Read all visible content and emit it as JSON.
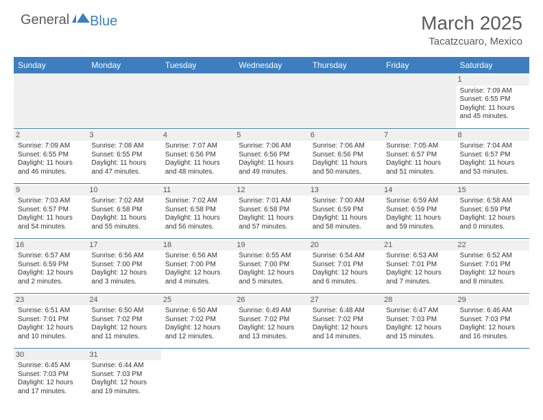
{
  "logo": {
    "text1": "General",
    "text2": "Blue",
    "color1": "#5a5a5a",
    "color2": "#3d7ebf",
    "shape_color": "#3d7ebf"
  },
  "header": {
    "month": "March 2025",
    "location": "Tacatzcuaro, Mexico"
  },
  "style": {
    "header_bg": "#3d7ebf",
    "header_text": "#ffffff",
    "daynum_bg": "#f0f0f0",
    "border_color": "#3d7ebf",
    "body_text": "#333333",
    "font_family": "Arial",
    "daynum_fontsize": 11,
    "cell_fontsize": 10
  },
  "columns": [
    "Sunday",
    "Monday",
    "Tuesday",
    "Wednesday",
    "Thursday",
    "Friday",
    "Saturday"
  ],
  "weeks": [
    [
      null,
      null,
      null,
      null,
      null,
      null,
      {
        "n": "1",
        "sunrise": "7:09 AM",
        "sunset": "6:55 PM",
        "dl": "11 hours and 45 minutes."
      }
    ],
    [
      {
        "n": "2",
        "sunrise": "7:09 AM",
        "sunset": "6:55 PM",
        "dl": "11 hours and 46 minutes."
      },
      {
        "n": "3",
        "sunrise": "7:08 AM",
        "sunset": "6:55 PM",
        "dl": "11 hours and 47 minutes."
      },
      {
        "n": "4",
        "sunrise": "7:07 AM",
        "sunset": "6:56 PM",
        "dl": "11 hours and 48 minutes."
      },
      {
        "n": "5",
        "sunrise": "7:06 AM",
        "sunset": "6:56 PM",
        "dl": "11 hours and 49 minutes."
      },
      {
        "n": "6",
        "sunrise": "7:06 AM",
        "sunset": "6:56 PM",
        "dl": "11 hours and 50 minutes."
      },
      {
        "n": "7",
        "sunrise": "7:05 AM",
        "sunset": "6:57 PM",
        "dl": "11 hours and 51 minutes."
      },
      {
        "n": "8",
        "sunrise": "7:04 AM",
        "sunset": "6:57 PM",
        "dl": "11 hours and 53 minutes."
      }
    ],
    [
      {
        "n": "9",
        "sunrise": "7:03 AM",
        "sunset": "6:57 PM",
        "dl": "11 hours and 54 minutes."
      },
      {
        "n": "10",
        "sunrise": "7:02 AM",
        "sunset": "6:58 PM",
        "dl": "11 hours and 55 minutes."
      },
      {
        "n": "11",
        "sunrise": "7:02 AM",
        "sunset": "6:58 PM",
        "dl": "11 hours and 56 minutes."
      },
      {
        "n": "12",
        "sunrise": "7:01 AM",
        "sunset": "6:58 PM",
        "dl": "11 hours and 57 minutes."
      },
      {
        "n": "13",
        "sunrise": "7:00 AM",
        "sunset": "6:59 PM",
        "dl": "11 hours and 58 minutes."
      },
      {
        "n": "14",
        "sunrise": "6:59 AM",
        "sunset": "6:59 PM",
        "dl": "11 hours and 59 minutes."
      },
      {
        "n": "15",
        "sunrise": "6:58 AM",
        "sunset": "6:59 PM",
        "dl": "12 hours and 0 minutes."
      }
    ],
    [
      {
        "n": "16",
        "sunrise": "6:57 AM",
        "sunset": "6:59 PM",
        "dl": "12 hours and 2 minutes."
      },
      {
        "n": "17",
        "sunrise": "6:56 AM",
        "sunset": "7:00 PM",
        "dl": "12 hours and 3 minutes."
      },
      {
        "n": "18",
        "sunrise": "6:56 AM",
        "sunset": "7:00 PM",
        "dl": "12 hours and 4 minutes."
      },
      {
        "n": "19",
        "sunrise": "6:55 AM",
        "sunset": "7:00 PM",
        "dl": "12 hours and 5 minutes."
      },
      {
        "n": "20",
        "sunrise": "6:54 AM",
        "sunset": "7:01 PM",
        "dl": "12 hours and 6 minutes."
      },
      {
        "n": "21",
        "sunrise": "6:53 AM",
        "sunset": "7:01 PM",
        "dl": "12 hours and 7 minutes."
      },
      {
        "n": "22",
        "sunrise": "6:52 AM",
        "sunset": "7:01 PM",
        "dl": "12 hours and 8 minutes."
      }
    ],
    [
      {
        "n": "23",
        "sunrise": "6:51 AM",
        "sunset": "7:01 PM",
        "dl": "12 hours and 10 minutes."
      },
      {
        "n": "24",
        "sunrise": "6:50 AM",
        "sunset": "7:02 PM",
        "dl": "12 hours and 11 minutes."
      },
      {
        "n": "25",
        "sunrise": "6:50 AM",
        "sunset": "7:02 PM",
        "dl": "12 hours and 12 minutes."
      },
      {
        "n": "26",
        "sunrise": "6:49 AM",
        "sunset": "7:02 PM",
        "dl": "12 hours and 13 minutes."
      },
      {
        "n": "27",
        "sunrise": "6:48 AM",
        "sunset": "7:02 PM",
        "dl": "12 hours and 14 minutes."
      },
      {
        "n": "28",
        "sunrise": "6:47 AM",
        "sunset": "7:03 PM",
        "dl": "12 hours and 15 minutes."
      },
      {
        "n": "29",
        "sunrise": "6:46 AM",
        "sunset": "7:03 PM",
        "dl": "12 hours and 16 minutes."
      }
    ],
    [
      {
        "n": "30",
        "sunrise": "6:45 AM",
        "sunset": "7:03 PM",
        "dl": "12 hours and 17 minutes."
      },
      {
        "n": "31",
        "sunrise": "6:44 AM",
        "sunset": "7:03 PM",
        "dl": "12 hours and 19 minutes."
      },
      null,
      null,
      null,
      null,
      null
    ]
  ],
  "labels": {
    "sunrise": "Sunrise:",
    "sunset": "Sunset:",
    "daylight": "Daylight:"
  }
}
